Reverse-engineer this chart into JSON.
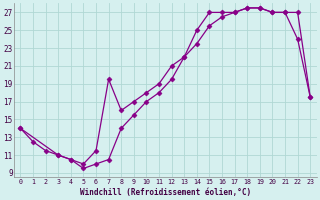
{
  "xlabel": "Windchill (Refroidissement éolien,°C)",
  "bg_color": "#d6f0ef",
  "grid_color": "#b0d8d4",
  "line_color": "#880088",
  "xlim": [
    -0.5,
    23.5
  ],
  "ylim": [
    8.5,
    28
  ],
  "yticks": [
    9,
    11,
    13,
    15,
    17,
    19,
    21,
    23,
    25,
    27
  ],
  "xticks": [
    0,
    1,
    2,
    3,
    4,
    5,
    6,
    7,
    8,
    9,
    10,
    11,
    12,
    13,
    14,
    15,
    16,
    17,
    18,
    19,
    20,
    21,
    22,
    23
  ],
  "line1_x": [
    0,
    1,
    2,
    3,
    4,
    5,
    6,
    7,
    8,
    9,
    10,
    11,
    12,
    13,
    14,
    15,
    16,
    17,
    18,
    19,
    20,
    21,
    22,
    23
  ],
  "line1_y": [
    14,
    12.5,
    11.5,
    11,
    10.5,
    9.5,
    10,
    10.5,
    14,
    15.5,
    17,
    18,
    19.5,
    22,
    25,
    27,
    27,
    27,
    27.5,
    27.5,
    27,
    27,
    24,
    17.5
  ],
  "line2_x": [
    0,
    3,
    4,
    5,
    6,
    7,
    8,
    9,
    10,
    11,
    12,
    13,
    14,
    15,
    16,
    17,
    18,
    19,
    20,
    21,
    22,
    23
  ],
  "line2_y": [
    14,
    11,
    10.5,
    10,
    11.5,
    19.5,
    16,
    17,
    18,
    19,
    21,
    22,
    23.5,
    25.5,
    26.5,
    27,
    27.5,
    27.5,
    27,
    27,
    27,
    17.5
  ]
}
